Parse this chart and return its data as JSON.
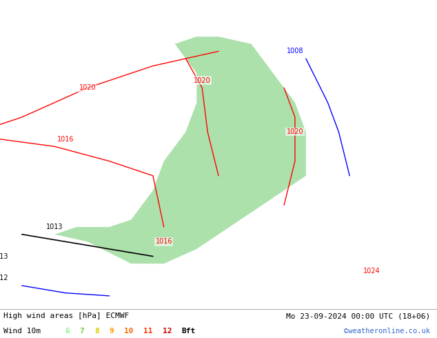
{
  "footer_left_line1": "High wind areas [hPa] ECMWF",
  "footer_left_line2": "Wind 10m",
  "footer_right_line1": "Mo 23-09-2024 00:00 UTC (18+06)",
  "footer_right_line2": "©weatheronline.co.uk",
  "bft_labels": [
    "6",
    "7",
    "8",
    "9",
    "10",
    "11",
    "12",
    "Bft"
  ],
  "bft_colors": [
    "#90ee90",
    "#66cc44",
    "#ddcc00",
    "#ff9900",
    "#ff6600",
    "#ff3300",
    "#cc0000",
    "#000000"
  ],
  "map_bg": "#e8e8e8",
  "land_gray": "#d8d8d8",
  "sea_color": "#c8d8e8",
  "green_fill": "#90d890",
  "light_green": "#b8e8b0",
  "footer_bg": "#ffffff",
  "fig_width": 6.34,
  "fig_height": 4.9,
  "dpi": 100,
  "lon_min": 0,
  "lon_max": 40,
  "lat_min": 53,
  "lat_max": 74
}
